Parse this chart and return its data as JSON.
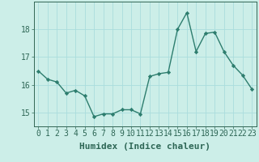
{
  "x": [
    0,
    1,
    2,
    3,
    4,
    5,
    6,
    7,
    8,
    9,
    10,
    11,
    12,
    13,
    14,
    15,
    16,
    17,
    18,
    19,
    20,
    21,
    22,
    23
  ],
  "y": [
    16.5,
    16.2,
    16.1,
    15.7,
    15.8,
    15.6,
    14.85,
    14.95,
    14.95,
    15.1,
    15.1,
    14.95,
    16.3,
    16.4,
    16.45,
    18.0,
    18.6,
    17.2,
    17.85,
    17.9,
    17.2,
    16.7,
    16.35,
    15.85
  ],
  "line_color": "#2d7d6e",
  "marker": "D",
  "marker_size": 2.2,
  "xlabel": "Humidex (Indice chaleur)",
  "xlim": [
    -0.5,
    23.5
  ],
  "ylim": [
    14.5,
    19.0
  ],
  "yticks": [
    15,
    16,
    17,
    18
  ],
  "xticks": [
    0,
    1,
    2,
    3,
    4,
    5,
    6,
    7,
    8,
    9,
    10,
    11,
    12,
    13,
    14,
    15,
    16,
    17,
    18,
    19,
    20,
    21,
    22,
    23
  ],
  "bg_color": "#cceee8",
  "grid_color": "#aadddd",
  "line_width": 1.0,
  "xlabel_fontsize": 8,
  "tick_fontsize": 7,
  "spine_color": "#336655"
}
